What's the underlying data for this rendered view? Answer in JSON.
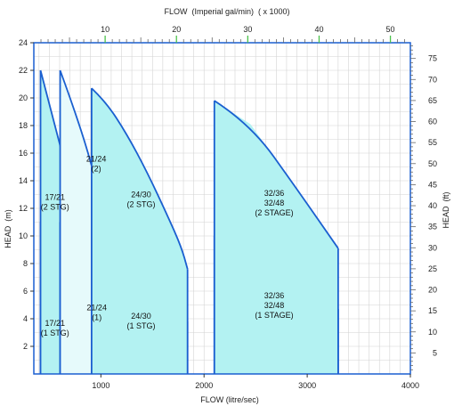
{
  "chart_data": {
    "type": "area",
    "title": "",
    "xlabel": "FLOW  (litre/sec)",
    "ylabel": "HEAD  (m)",
    "x2label": "FLOW  (Imperial gal/min)  ( x 1000)",
    "y2label": "HEAD  (ft)",
    "xlim": [
      350,
      4000
    ],
    "ylim": [
      0,
      24
    ],
    "x2lim": [
      0,
      52.8
    ],
    "y2lim": [
      0,
      78.74
    ],
    "x_ticks": [
      1000,
      2000,
      3000,
      4000
    ],
    "y_ticks": [
      2,
      4,
      6,
      8,
      10,
      12,
      14,
      16,
      18,
      20,
      22,
      24
    ],
    "x2_ticks": [
      10,
      20,
      30,
      40,
      50
    ],
    "y2_ticks": [
      5,
      10,
      15,
      20,
      25,
      30,
      35,
      40,
      45,
      50,
      55,
      60,
      65,
      70,
      75
    ],
    "grid": true,
    "colors": {
      "fill": "#b3f2f2",
      "fill_light": "#e6fafb",
      "stroke": "#1a5fd0",
      "grid": "#d4d4d4",
      "frame": "#1a5fd0",
      "x2_tick_accent": "#4cc24c"
    },
    "regions": [
      {
        "label": [
          "17/21",
          "(1 STG)"
        ],
        "shade": "fill",
        "points": [
          [
            415,
            0
          ],
          [
            415,
            11
          ],
          [
            840,
            4.5
          ],
          [
            840,
            0
          ]
        ],
        "top_from": 1,
        "top_to": 2,
        "label_at": [
          555,
          3.5
        ]
      },
      {
        "label": [
          "17/21",
          "(2 STG)"
        ],
        "shade": "fill",
        "points": [
          [
            415,
            0
          ],
          [
            415,
            22
          ],
          [
            840,
            9.8
          ],
          [
            840,
            0
          ]
        ],
        "top_from": 1,
        "top_to": 2,
        "label_at": [
          555,
          12.6
        ]
      },
      {
        "label": [
          "21/24",
          "(1)"
        ],
        "shade": "fill_light",
        "points": [
          [
            605,
            0
          ],
          [
            605,
            11
          ],
          [
            1140,
            4.7
          ],
          [
            1140,
            0
          ]
        ],
        "top_from": 1,
        "top_to": 2,
        "label_at": [
          960,
          4.6
        ]
      },
      {
        "label": [
          "21/24",
          "(2)"
        ],
        "shade": "fill_light",
        "points": [
          [
            605,
            0
          ],
          [
            605,
            22
          ],
          [
            800,
            18
          ],
          [
            970,
            13.5
          ],
          [
            1110,
            9.6
          ],
          [
            1140,
            9
          ],
          [
            1140,
            0
          ]
        ],
        "top_from": 1,
        "top_to": 5,
        "label_at": [
          955,
          15.4
        ]
      },
      {
        "label": [
          "24/30",
          "(1 STG)"
        ],
        "shade": "fill",
        "points": [
          [
            910,
            0
          ],
          [
            910,
            10.5
          ],
          [
            1200,
            9.2
          ],
          [
            1450,
            7.6
          ],
          [
            1650,
            5.8
          ],
          [
            1840,
            3.8
          ],
          [
            1840,
            0
          ]
        ],
        "top_from": 1,
        "top_to": 5,
        "label_at": [
          1390,
          4.0
        ]
      },
      {
        "label": [
          "24/30",
          "(2 STG)"
        ],
        "shade": "fill",
        "points": [
          [
            910,
            0
          ],
          [
            910,
            20.7
          ],
          [
            1050,
            19.7
          ],
          [
            1250,
            17.4
          ],
          [
            1450,
            14.6
          ],
          [
            1650,
            11.4
          ],
          [
            1780,
            9.2
          ],
          [
            1840,
            7.6
          ],
          [
            1840,
            0
          ]
        ],
        "top_from": 1,
        "top_to": 7,
        "label_at": [
          1390,
          12.8
        ]
      },
      {
        "label": [
          "32/36",
          "32/48",
          "(1 STAGE)"
        ],
        "shade": "fill",
        "points": [
          [
            2100,
            0
          ],
          [
            2100,
            10
          ],
          [
            2500,
            9.1
          ],
          [
            2900,
            7.1
          ],
          [
            3300,
            4.7
          ],
          [
            3300,
            0
          ]
        ],
        "top_from": 1,
        "top_to": 4,
        "label_at": [
          2680,
          5.5
        ]
      },
      {
        "label": [
          "32/36",
          "32/48",
          "(2 STAGE)"
        ],
        "shade": "fill",
        "points": [
          [
            2100,
            0
          ],
          [
            2100,
            19.8
          ],
          [
            2450,
            18.1
          ],
          [
            2900,
            13.4
          ],
          [
            3300,
            9.1
          ],
          [
            3300,
            0
          ]
        ],
        "top_from": 1,
        "top_to": 4,
        "label_at": [
          2680,
          12.9
        ]
      }
    ]
  }
}
